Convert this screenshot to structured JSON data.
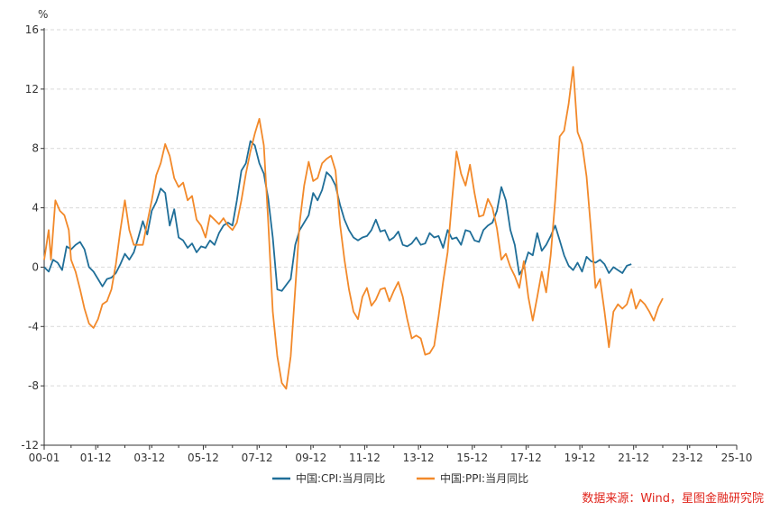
{
  "chart_data": {
    "type": "line",
    "title": "",
    "ylabel": "%",
    "ylim": [
      -12,
      16
    ],
    "yticks": [
      -12,
      -8,
      -4,
      0,
      4,
      8,
      12,
      16
    ],
    "xtick_labels": [
      "00-01",
      "01-12",
      "03-12",
      "05-12",
      "07-12",
      "09-12",
      "11-12",
      "13-12",
      "15-12",
      "17-12",
      "19-12",
      "21-12",
      "23-12",
      "25-10"
    ],
    "x_start": "2000-01",
    "x_end": "2025-10",
    "colors": {
      "cpi": "#1f6e98",
      "ppi": "#f2892a",
      "axis": "#333333",
      "grid": "#d9d9d9"
    },
    "series": [
      {
        "name": "中国:CPI:当月同比",
        "key": "cpi",
        "points": [
          [
            0,
            0.0
          ],
          [
            2,
            -0.3
          ],
          [
            4,
            0.5
          ],
          [
            6,
            0.3
          ],
          [
            8,
            -0.2
          ],
          [
            10,
            1.4
          ],
          [
            12,
            1.2
          ],
          [
            14,
            1.5
          ],
          [
            16,
            1.7
          ],
          [
            18,
            1.2
          ],
          [
            20,
            0.0
          ],
          [
            22,
            -0.3
          ],
          [
            24,
            -0.8
          ],
          [
            26,
            -1.3
          ],
          [
            28,
            -0.8
          ],
          [
            30,
            -0.7
          ],
          [
            32,
            -0.4
          ],
          [
            34,
            0.2
          ],
          [
            36,
            0.9
          ],
          [
            38,
            0.5
          ],
          [
            40,
            1.0
          ],
          [
            42,
            2.0
          ],
          [
            44,
            3.1
          ],
          [
            46,
            2.2
          ],
          [
            48,
            3.8
          ],
          [
            50,
            4.4
          ],
          [
            52,
            5.3
          ],
          [
            54,
            5.0
          ],
          [
            56,
            2.8
          ],
          [
            58,
            3.9
          ],
          [
            60,
            2.0
          ],
          [
            62,
            1.8
          ],
          [
            64,
            1.3
          ],
          [
            66,
            1.6
          ],
          [
            68,
            1.0
          ],
          [
            70,
            1.4
          ],
          [
            72,
            1.3
          ],
          [
            74,
            1.8
          ],
          [
            76,
            1.5
          ],
          [
            78,
            2.3
          ],
          [
            80,
            2.8
          ],
          [
            82,
            3.0
          ],
          [
            84,
            2.8
          ],
          [
            86,
            4.5
          ],
          [
            88,
            6.5
          ],
          [
            90,
            7.0
          ],
          [
            92,
            8.5
          ],
          [
            94,
            8.2
          ],
          [
            96,
            7.0
          ],
          [
            98,
            6.3
          ],
          [
            100,
            4.6
          ],
          [
            102,
            2.0
          ],
          [
            104,
            -1.5
          ],
          [
            106,
            -1.6
          ],
          [
            108,
            -1.2
          ],
          [
            110,
            -0.8
          ],
          [
            112,
            1.5
          ],
          [
            114,
            2.5
          ],
          [
            116,
            3.0
          ],
          [
            118,
            3.5
          ],
          [
            120,
            5.0
          ],
          [
            122,
            4.5
          ],
          [
            124,
            5.2
          ],
          [
            126,
            6.4
          ],
          [
            128,
            6.1
          ],
          [
            130,
            5.5
          ],
          [
            132,
            4.2
          ],
          [
            134,
            3.2
          ],
          [
            136,
            2.5
          ],
          [
            138,
            2.0
          ],
          [
            140,
            1.8
          ],
          [
            142,
            2.0
          ],
          [
            144,
            2.1
          ],
          [
            146,
            2.5
          ],
          [
            148,
            3.2
          ],
          [
            150,
            2.4
          ],
          [
            152,
            2.5
          ],
          [
            154,
            1.8
          ],
          [
            156,
            2.0
          ],
          [
            158,
            2.4
          ],
          [
            160,
            1.5
          ],
          [
            162,
            1.4
          ],
          [
            164,
            1.6
          ],
          [
            166,
            2.0
          ],
          [
            168,
            1.5
          ],
          [
            170,
            1.6
          ],
          [
            172,
            2.3
          ],
          [
            174,
            2.0
          ],
          [
            176,
            2.1
          ],
          [
            178,
            1.3
          ],
          [
            180,
            2.5
          ],
          [
            182,
            1.9
          ],
          [
            184,
            2.0
          ],
          [
            186,
            1.5
          ],
          [
            188,
            2.5
          ],
          [
            190,
            2.4
          ],
          [
            192,
            1.8
          ],
          [
            194,
            1.7
          ],
          [
            196,
            2.5
          ],
          [
            198,
            2.8
          ],
          [
            200,
            3.0
          ],
          [
            202,
            3.8
          ],
          [
            204,
            5.4
          ],
          [
            206,
            4.5
          ],
          [
            208,
            2.5
          ],
          [
            210,
            1.5
          ],
          [
            212,
            -0.5
          ],
          [
            214,
            0.0
          ],
          [
            216,
            1.0
          ],
          [
            218,
            0.8
          ],
          [
            220,
            2.3
          ],
          [
            222,
            1.1
          ],
          [
            224,
            1.5
          ],
          [
            226,
            2.1
          ],
          [
            228,
            2.8
          ],
          [
            230,
            1.8
          ],
          [
            232,
            0.8
          ],
          [
            234,
            0.1
          ],
          [
            236,
            -0.2
          ],
          [
            238,
            0.3
          ],
          [
            240,
            -0.3
          ],
          [
            242,
            0.7
          ],
          [
            244,
            0.4
          ],
          [
            246,
            0.3
          ],
          [
            248,
            0.5
          ],
          [
            250,
            0.2
          ],
          [
            252,
            -0.4
          ],
          [
            254,
            0.0
          ],
          [
            256,
            -0.2
          ],
          [
            258,
            -0.4
          ],
          [
            260,
            0.1
          ],
          [
            262,
            0.2
          ]
        ]
      },
      {
        "name": "中国:PPI:当月同比",
        "key": "ppi",
        "points": [
          [
            0,
            0.5
          ],
          [
            2,
            2.5
          ],
          [
            3,
            0.5
          ],
          [
            5,
            4.5
          ],
          [
            7,
            3.8
          ],
          [
            9,
            3.5
          ],
          [
            11,
            2.5
          ],
          [
            12,
            0.5
          ],
          [
            14,
            -0.3
          ],
          [
            16,
            -1.5
          ],
          [
            18,
            -2.8
          ],
          [
            20,
            -3.8
          ],
          [
            22,
            -4.1
          ],
          [
            24,
            -3.5
          ],
          [
            26,
            -2.5
          ],
          [
            28,
            -2.3
          ],
          [
            30,
            -1.5
          ],
          [
            32,
            0.2
          ],
          [
            34,
            2.5
          ],
          [
            36,
            4.5
          ],
          [
            38,
            2.5
          ],
          [
            40,
            1.5
          ],
          [
            42,
            1.5
          ],
          [
            44,
            1.5
          ],
          [
            46,
            3.0
          ],
          [
            48,
            4.5
          ],
          [
            50,
            6.2
          ],
          [
            52,
            7.0
          ],
          [
            54,
            8.3
          ],
          [
            56,
            7.5
          ],
          [
            58,
            6.0
          ],
          [
            60,
            5.4
          ],
          [
            62,
            5.7
          ],
          [
            64,
            4.5
          ],
          [
            66,
            4.8
          ],
          [
            68,
            3.2
          ],
          [
            70,
            2.8
          ],
          [
            72,
            2.0
          ],
          [
            74,
            3.5
          ],
          [
            76,
            3.2
          ],
          [
            78,
            2.9
          ],
          [
            80,
            3.3
          ],
          [
            82,
            2.8
          ],
          [
            84,
            2.5
          ],
          [
            86,
            3.0
          ],
          [
            88,
            4.5
          ],
          [
            90,
            6.3
          ],
          [
            92,
            7.8
          ],
          [
            94,
            9.0
          ],
          [
            96,
            10.0
          ],
          [
            98,
            8.2
          ],
          [
            100,
            3.0
          ],
          [
            102,
            -3.0
          ],
          [
            104,
            -6.0
          ],
          [
            106,
            -7.8
          ],
          [
            108,
            -8.2
          ],
          [
            110,
            -6.0
          ],
          [
            112,
            -1.5
          ],
          [
            114,
            3.0
          ],
          [
            116,
            5.5
          ],
          [
            118,
            7.1
          ],
          [
            120,
            5.8
          ],
          [
            122,
            6.0
          ],
          [
            124,
            7.0
          ],
          [
            126,
            7.3
          ],
          [
            128,
            7.5
          ],
          [
            130,
            6.5
          ],
          [
            132,
            2.9
          ],
          [
            134,
            0.5
          ],
          [
            136,
            -1.5
          ],
          [
            138,
            -3.0
          ],
          [
            140,
            -3.5
          ],
          [
            142,
            -2.0
          ],
          [
            144,
            -1.4
          ],
          [
            146,
            -2.6
          ],
          [
            148,
            -2.2
          ],
          [
            150,
            -1.5
          ],
          [
            152,
            -1.4
          ],
          [
            154,
            -2.3
          ],
          [
            156,
            -1.6
          ],
          [
            158,
            -1.0
          ],
          [
            160,
            -2.0
          ],
          [
            162,
            -3.5
          ],
          [
            164,
            -4.8
          ],
          [
            166,
            -4.6
          ],
          [
            168,
            -4.8
          ],
          [
            170,
            -5.9
          ],
          [
            172,
            -5.8
          ],
          [
            174,
            -5.3
          ],
          [
            176,
            -3.3
          ],
          [
            178,
            -1.0
          ],
          [
            180,
            1.0
          ],
          [
            182,
            4.5
          ],
          [
            184,
            7.8
          ],
          [
            186,
            6.3
          ],
          [
            188,
            5.5
          ],
          [
            190,
            6.9
          ],
          [
            192,
            5.0
          ],
          [
            194,
            3.4
          ],
          [
            196,
            3.5
          ],
          [
            198,
            4.6
          ],
          [
            200,
            4.0
          ],
          [
            202,
            2.6
          ],
          [
            204,
            0.5
          ],
          [
            206,
            0.9
          ],
          [
            208,
            0.0
          ],
          [
            210,
            -0.6
          ],
          [
            212,
            -1.4
          ],
          [
            214,
            0.4
          ],
          [
            216,
            -2.0
          ],
          [
            218,
            -3.6
          ],
          [
            220,
            -2.0
          ],
          [
            222,
            -0.3
          ],
          [
            224,
            -1.7
          ],
          [
            226,
            0.8
          ],
          [
            228,
            4.5
          ],
          [
            230,
            8.8
          ],
          [
            232,
            9.2
          ],
          [
            234,
            11.0
          ],
          [
            236,
            13.5
          ],
          [
            238,
            9.1
          ],
          [
            240,
            8.3
          ],
          [
            242,
            6.1
          ],
          [
            244,
            2.5
          ],
          [
            246,
            -1.4
          ],
          [
            248,
            -0.8
          ],
          [
            250,
            -3.0
          ],
          [
            252,
            -5.4
          ],
          [
            254,
            -3.0
          ],
          [
            256,
            -2.5
          ],
          [
            258,
            -2.8
          ],
          [
            260,
            -2.5
          ],
          [
            262,
            -1.5
          ],
          [
            264,
            -2.8
          ],
          [
            266,
            -2.2
          ],
          [
            268,
            -2.5
          ],
          [
            270,
            -3.0
          ],
          [
            272,
            -3.6
          ],
          [
            274,
            -2.7
          ],
          [
            276,
            -2.1
          ]
        ]
      }
    ],
    "legend_position": "bottom-center"
  },
  "footer": {
    "source": "数据来源：Wind，星图金融研究院"
  }
}
